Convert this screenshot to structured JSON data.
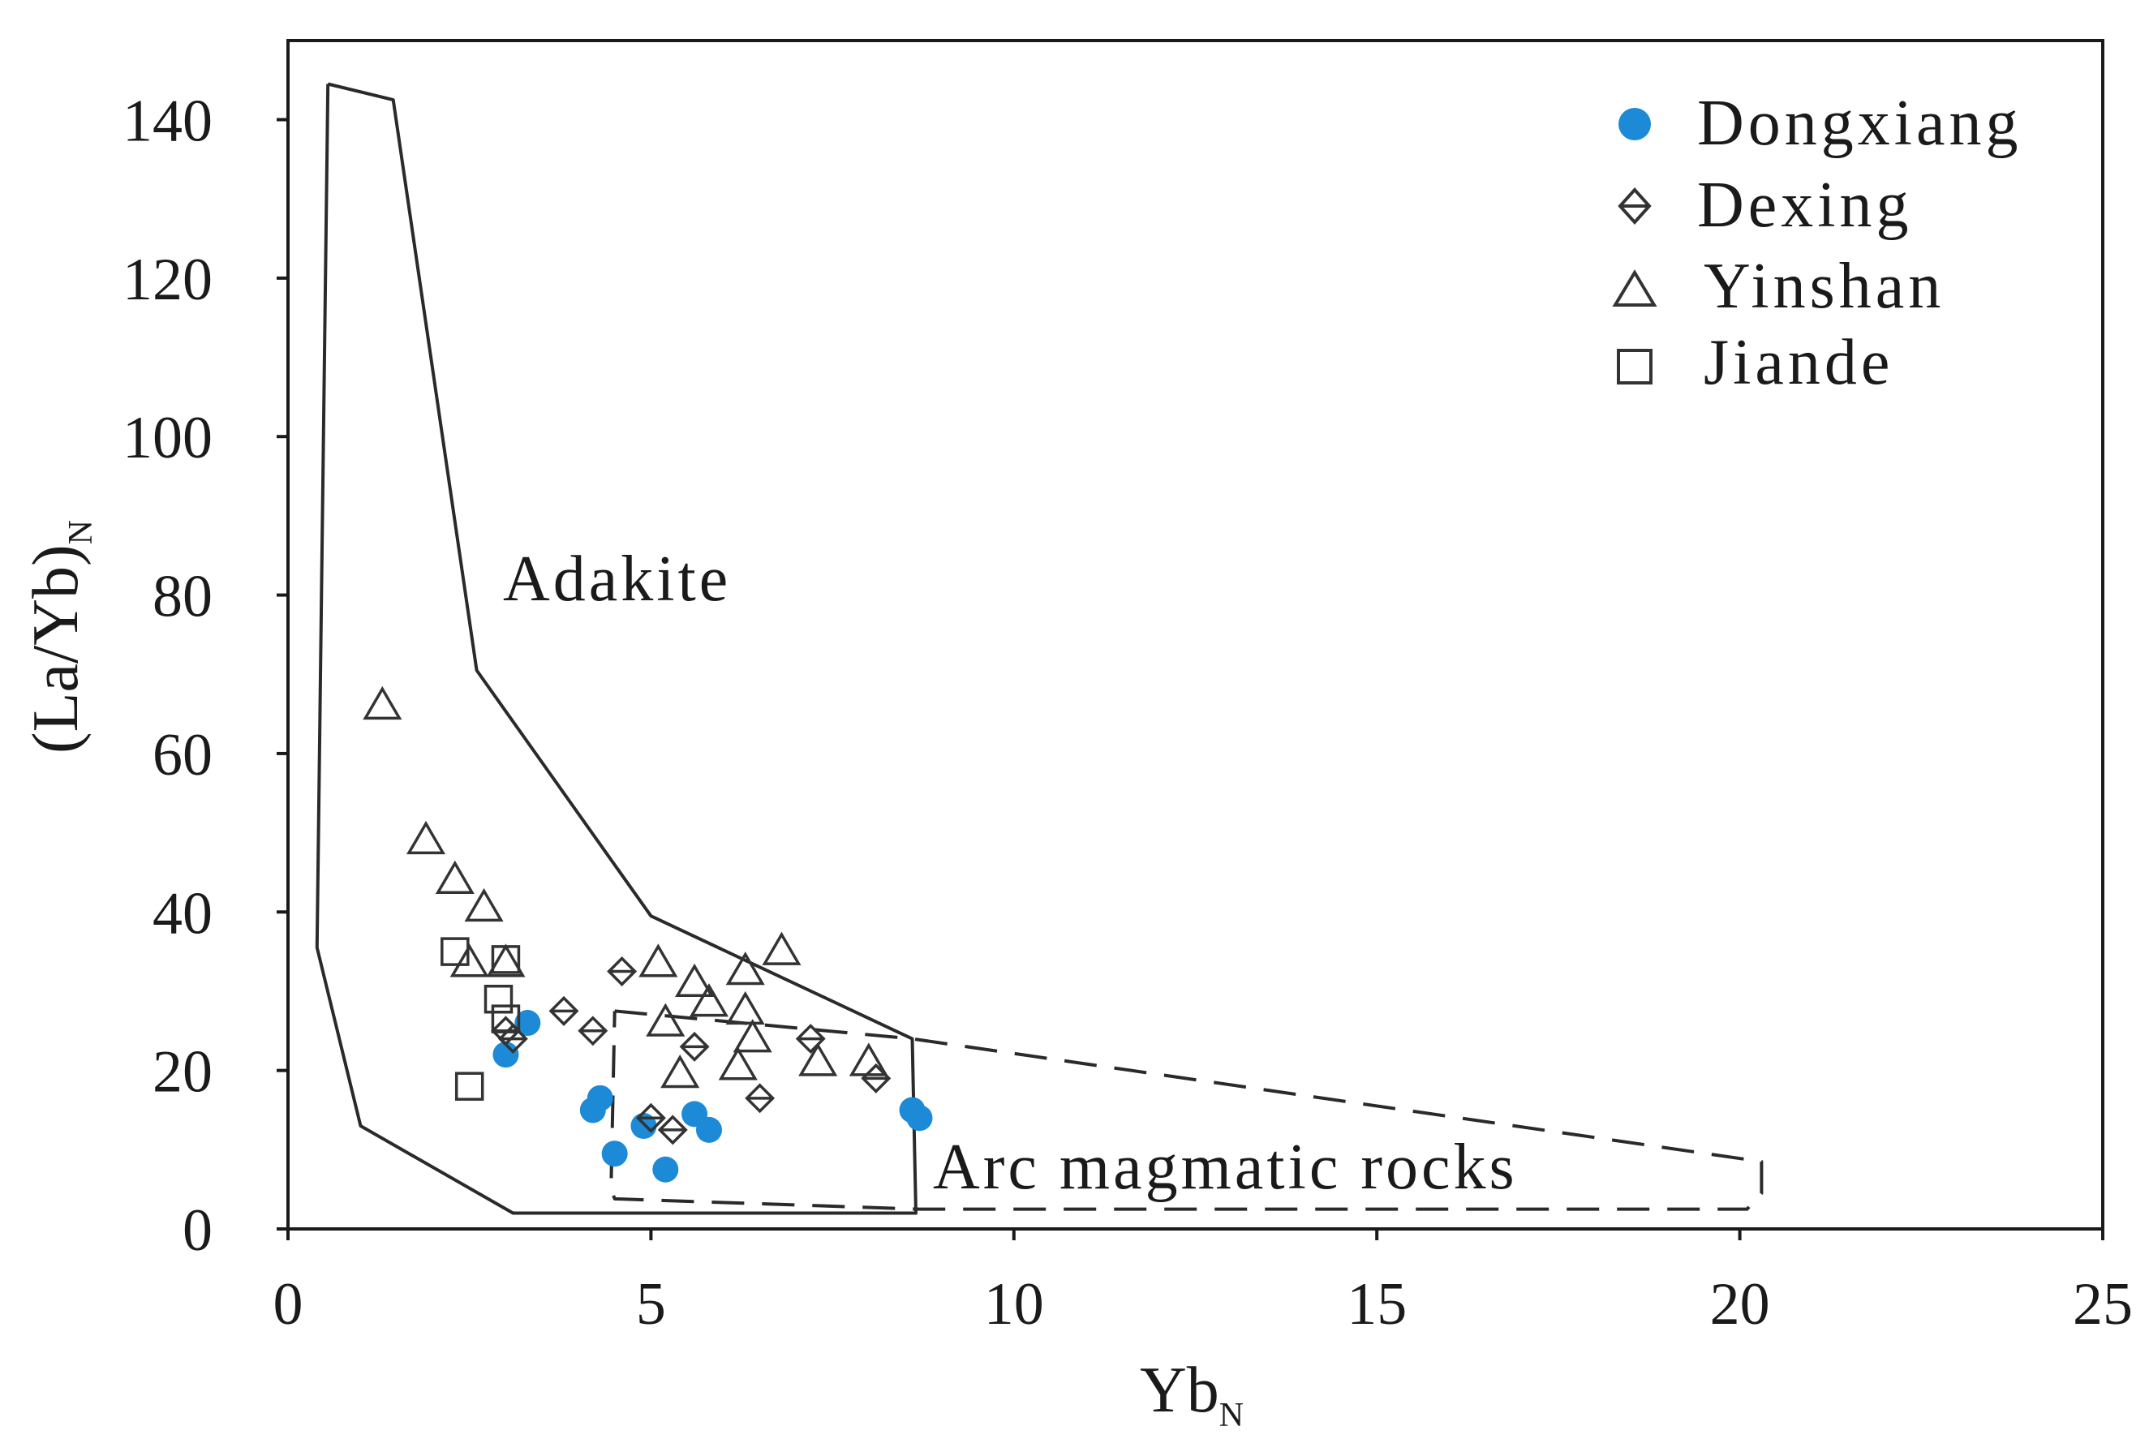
{
  "chart_data": {
    "type": "scatter",
    "xlabel": {
      "main": "Yb",
      "sub": "N"
    },
    "ylabel": {
      "main": "(La/Yb)",
      "sub": "N"
    },
    "xlim": [
      0,
      25
    ],
    "ylim": [
      0,
      145
    ],
    "x_ticks": [
      0,
      5,
      10,
      15,
      20,
      25
    ],
    "y_ticks": [
      0,
      20,
      40,
      60,
      80,
      100,
      120,
      140
    ],
    "grid": false,
    "legend_position": "top-right",
    "series": [
      {
        "name": "Dongxiang",
        "marker": "filled-circle",
        "color": "#1c8ad6",
        "points": [
          [
            3.0,
            22
          ],
          [
            3.3,
            26
          ],
          [
            4.2,
            15
          ],
          [
            4.3,
            16.5
          ],
          [
            4.5,
            9.5
          ],
          [
            4.9,
            13
          ],
          [
            5.2,
            7.5
          ],
          [
            5.6,
            14.5
          ],
          [
            5.8,
            12.5
          ],
          [
            8.6,
            15
          ],
          [
            8.7,
            14
          ]
        ]
      },
      {
        "name": "Dexing",
        "marker": "diamond",
        "color": "#333333",
        "points": [
          [
            3.0,
            25
          ],
          [
            3.1,
            24
          ],
          [
            3.8,
            27.5
          ],
          [
            4.2,
            25
          ],
          [
            4.6,
            32.5
          ],
          [
            5.0,
            14
          ],
          [
            5.3,
            12.5
          ],
          [
            5.6,
            23
          ],
          [
            6.5,
            16.5
          ],
          [
            7.2,
            24
          ],
          [
            8.1,
            19
          ]
        ]
      },
      {
        "name": "Yinshan",
        "marker": "triangle",
        "color": "#333333",
        "points": [
          [
            1.3,
            66
          ],
          [
            1.9,
            49
          ],
          [
            2.3,
            44
          ],
          [
            2.5,
            33.5
          ],
          [
            2.7,
            40.5
          ],
          [
            3.0,
            33.5
          ],
          [
            5.1,
            33.5
          ],
          [
            5.2,
            26
          ],
          [
            5.4,
            19.5
          ],
          [
            5.6,
            31
          ],
          [
            5.8,
            28.5
          ],
          [
            6.2,
            20.5
          ],
          [
            6.3,
            27.5
          ],
          [
            6.4,
            24
          ],
          [
            6.3,
            32.5
          ],
          [
            6.8,
            35
          ],
          [
            7.3,
            21
          ],
          [
            8.0,
            21
          ]
        ]
      },
      {
        "name": "Jiande",
        "marker": "square",
        "color": "#333333",
        "points": [
          [
            2.3,
            35
          ],
          [
            2.5,
            18
          ],
          [
            2.9,
            29
          ],
          [
            3.0,
            34
          ],
          [
            3.0,
            26.5
          ]
        ]
      }
    ],
    "regions": [
      {
        "name": "Adakite",
        "line_style": "solid",
        "polygon": [
          [
            0.55,
            144.5
          ],
          [
            1.45,
            142.5
          ],
          [
            2.6,
            70.5
          ],
          [
            5.0,
            39.5
          ],
          [
            8.6,
            24
          ],
          [
            8.65,
            2
          ],
          [
            3.1,
            2
          ],
          [
            1.0,
            13
          ],
          [
            0.4,
            35.5
          ],
          [
            0.55,
            144.5
          ]
        ]
      },
      {
        "name": "Arc magmatic rocks",
        "line_style": "dashed",
        "polygon": [
          [
            4.5,
            27.5
          ],
          [
            8.6,
            24
          ],
          [
            20.3,
            8.5
          ],
          [
            20.3,
            4.5
          ],
          [
            20.1,
            2.5
          ],
          [
            8.7,
            2.5
          ],
          [
            4.5,
            3.8
          ],
          [
            4.45,
            5
          ],
          [
            4.5,
            27.5
          ]
        ]
      }
    ],
    "annotations": [
      "Adakite",
      "Arc magmatic rocks"
    ]
  }
}
